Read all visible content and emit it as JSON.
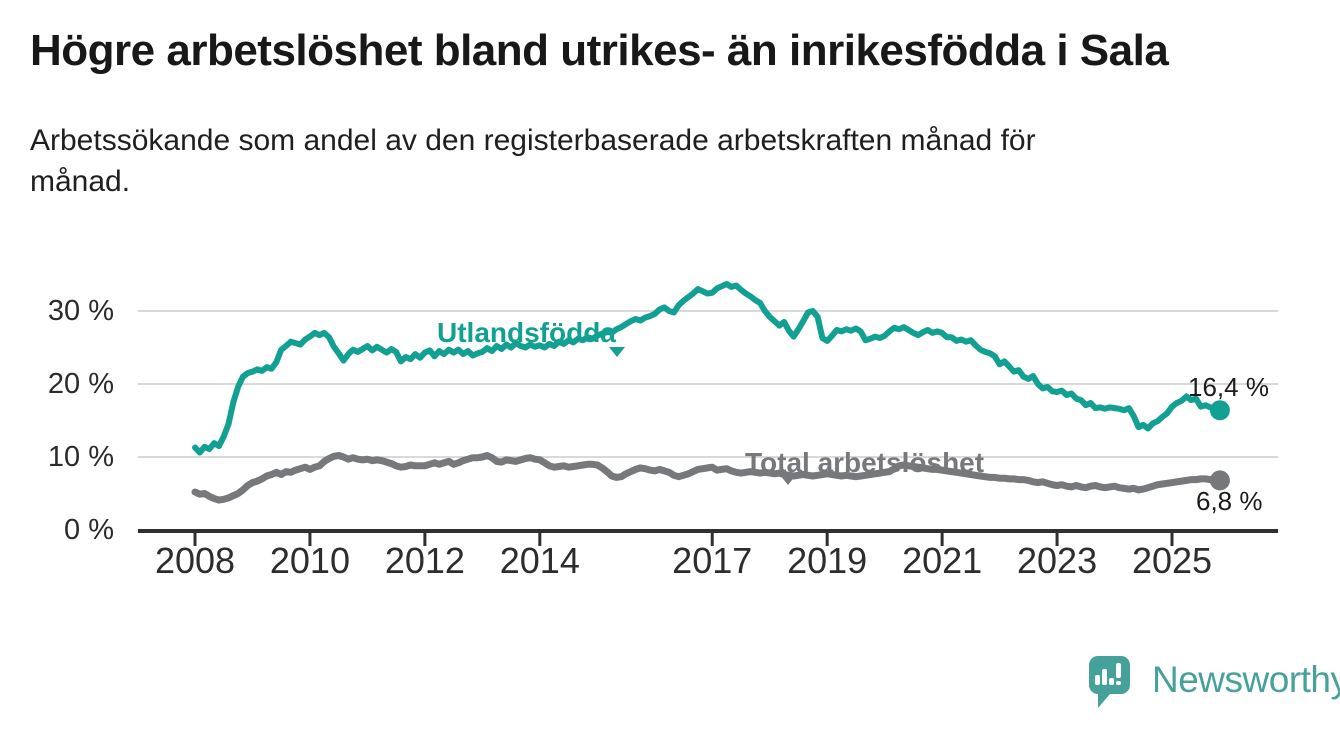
{
  "header": {
    "title": "Högre arbetslöshet bland utrikes- än inrikesfödda i Sala",
    "subtitle_lines": [
      "Arbetssökande som andel av den registerbaserade arbetskraften månad för",
      "månad."
    ]
  },
  "footer": {
    "logo_text": "Newsworthy"
  },
  "colors": {
    "foreign_born": "#12a092",
    "total": "#77787c",
    "grid": "#d9d9d9",
    "axis": "#303030",
    "tick_text": "#2d2d2d",
    "value_text": "#1b1b1b",
    "logo": "#46a19a"
  },
  "chart_data": {
    "type": "line",
    "x_start_year": 2008,
    "x_interval": "monthly",
    "x_tick_years": [
      2008,
      2010,
      2012,
      2014,
      2017,
      2019,
      2021,
      2023,
      2025
    ],
    "x_tick_labels": [
      "2008",
      "2010",
      "2012",
      "2014",
      "2017",
      "2019",
      "2021",
      "2023",
      "2025"
    ],
    "y_ticks": [
      0,
      10,
      20,
      30
    ],
    "y_tick_labels": [
      "0 %",
      "10 %",
      "20 %",
      "30 %"
    ],
    "ylim": [
      0,
      35
    ],
    "grid": "horizontal-only",
    "legend_position": "inline-labels",
    "series": [
      {
        "name": "Utlandsfödda",
        "end_label": "16,4 %",
        "end_value": 16.4,
        "values": [
          11.3,
          10.6,
          11.4,
          11.1,
          11.9,
          11.5,
          12.8,
          14.5,
          17.5,
          19.6,
          21.0,
          21.5,
          21.7,
          22.0,
          21.8,
          22.3,
          22.1,
          23.0,
          24.7,
          25.2,
          25.8,
          25.6,
          25.4,
          26.1,
          26.5,
          27.0,
          26.7,
          27.0,
          26.4,
          25.1,
          24.2,
          23.2,
          24.1,
          24.7,
          24.4,
          24.8,
          25.2,
          24.6,
          25.1,
          24.7,
          24.3,
          24.8,
          24.4,
          23.1,
          23.7,
          23.4,
          24.1,
          23.6,
          24.3,
          24.6,
          23.8,
          24.5,
          24.1,
          24.7,
          24.3,
          24.7,
          24.1,
          24.5,
          23.9,
          24.2,
          24.4,
          24.9,
          24.5,
          25.2,
          24.8,
          25.4,
          25.0,
          25.6,
          25.2,
          25.0,
          25.4,
          25.1,
          25.3,
          25.0,
          25.5,
          25.2,
          25.8,
          25.5,
          26.0,
          25.7,
          26.2,
          26.0,
          26.4,
          26.2,
          26.6,
          26.9,
          27.2,
          27.0,
          27.5,
          27.8,
          28.2,
          28.6,
          28.9,
          28.7,
          29.1,
          29.3,
          29.6,
          30.2,
          30.5,
          30.0,
          29.8,
          30.8,
          31.4,
          31.9,
          32.4,
          33.0,
          32.7,
          32.4,
          32.5,
          33.1,
          33.4,
          33.7,
          33.3,
          33.5,
          32.9,
          32.4,
          32.0,
          31.5,
          31.1,
          30.0,
          29.2,
          28.6,
          28.0,
          28.5,
          27.3,
          26.5,
          27.5,
          28.6,
          29.8,
          30.0,
          29.2,
          26.3,
          25.9,
          26.6,
          27.4,
          27.2,
          27.5,
          27.3,
          27.6,
          27.2,
          26.0,
          26.2,
          26.5,
          26.3,
          26.6,
          27.2,
          27.7,
          27.5,
          27.8,
          27.4,
          27.0,
          26.7,
          27.1,
          27.4,
          27.0,
          27.2,
          27.0,
          26.4,
          26.4,
          25.9,
          26.1,
          25.8,
          26.0,
          25.3,
          24.7,
          24.4,
          24.2,
          23.8,
          22.7,
          23.1,
          22.4,
          21.7,
          21.9,
          21.0,
          20.7,
          21.1,
          20.0,
          19.4,
          19.6,
          19.0,
          18.9,
          19.1,
          18.5,
          18.7,
          18.0,
          17.8,
          17.1,
          17.4,
          16.7,
          16.8,
          16.6,
          16.8,
          16.7,
          16.6,
          16.4,
          16.7,
          15.6,
          14.1,
          14.4,
          13.9,
          14.6,
          14.9,
          15.5,
          16.0,
          16.9,
          17.4,
          17.7,
          18.3,
          17.8,
          18.0,
          16.9,
          17.1,
          16.8,
          16.6,
          16.4
        ]
      },
      {
        "name": "Total arbetslöshet",
        "end_label": "6,8 %",
        "end_value": 6.8,
        "values": [
          5.2,
          4.9,
          5.0,
          4.6,
          4.3,
          4.1,
          4.2,
          4.4,
          4.7,
          5.0,
          5.5,
          6.1,
          6.5,
          6.7,
          7.0,
          7.4,
          7.6,
          7.9,
          7.6,
          8.0,
          7.9,
          8.2,
          8.4,
          8.6,
          8.3,
          8.6,
          8.8,
          9.4,
          9.8,
          10.1,
          10.2,
          10.0,
          9.7,
          9.9,
          9.7,
          9.6,
          9.7,
          9.5,
          9.6,
          9.5,
          9.3,
          9.1,
          8.8,
          8.6,
          8.7,
          8.9,
          8.8,
          8.8,
          8.8,
          9.0,
          9.2,
          9.0,
          9.2,
          9.4,
          9.0,
          9.2,
          9.5,
          9.7,
          9.9,
          9.9,
          10.0,
          10.2,
          9.9,
          9.4,
          9.3,
          9.6,
          9.5,
          9.4,
          9.6,
          9.8,
          9.9,
          9.7,
          9.6,
          9.2,
          8.8,
          8.6,
          8.7,
          8.8,
          8.6,
          8.7,
          8.8,
          8.9,
          9.0,
          9.0,
          8.9,
          8.5,
          8.0,
          7.4,
          7.2,
          7.3,
          7.7,
          8.0,
          8.3,
          8.5,
          8.4,
          8.2,
          8.1,
          8.3,
          8.1,
          7.9,
          7.5,
          7.3,
          7.5,
          7.7,
          8.0,
          8.3,
          8.4,
          8.5,
          8.6,
          8.2,
          8.3,
          8.4,
          8.1,
          7.9,
          7.8,
          7.9,
          8.0,
          7.9,
          7.8,
          7.9,
          7.8,
          7.7,
          7.8,
          7.6,
          7.5,
          7.4,
          7.5,
          7.6,
          7.5,
          7.4,
          7.5,
          7.6,
          7.7,
          7.6,
          7.5,
          7.4,
          7.5,
          7.4,
          7.3,
          7.4,
          7.5,
          7.6,
          7.7,
          7.8,
          7.9,
          8.0,
          8.4,
          8.8,
          8.9,
          8.8,
          8.7,
          8.6,
          8.5,
          8.4,
          8.3,
          8.3,
          8.2,
          8.1,
          8.0,
          7.9,
          7.8,
          7.7,
          7.6,
          7.5,
          7.4,
          7.3,
          7.2,
          7.2,
          7.1,
          7.1,
          7.0,
          7.0,
          6.9,
          6.9,
          6.8,
          6.6,
          6.5,
          6.6,
          6.4,
          6.2,
          6.1,
          6.2,
          6.0,
          5.9,
          6.1,
          5.9,
          5.8,
          6.0,
          6.1,
          5.9,
          5.8,
          5.9,
          6.0,
          5.8,
          5.7,
          5.6,
          5.7,
          5.5,
          5.6,
          5.8,
          6.0,
          6.2,
          6.3,
          6.4,
          6.5,
          6.6,
          6.7,
          6.8,
          6.9,
          6.9,
          7.0,
          7.0,
          6.9,
          6.9,
          6.8
        ]
      }
    ]
  }
}
